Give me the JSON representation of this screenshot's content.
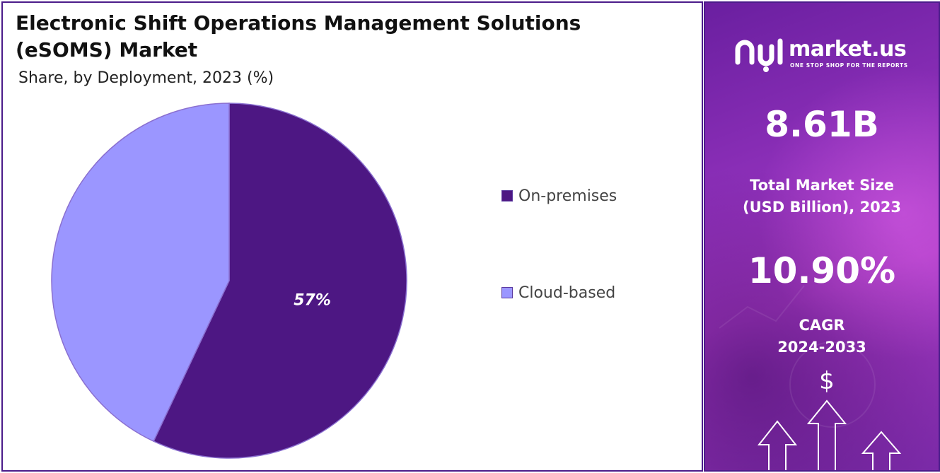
{
  "chart_data": {
    "type": "pie",
    "title": "Electronic Shift Operations Management Solutions (eSOMS) Market",
    "subtitle": "Share, by Deployment, 2023 (%)",
    "categories": [
      "On-premises",
      "Cloud-based"
    ],
    "values": [
      57,
      43
    ],
    "data_labels": [
      "57%",
      ""
    ],
    "colors": [
      "#4d1783",
      "#9b96ff"
    ],
    "legend_position": "right"
  },
  "brand": {
    "name": "market.us",
    "tagline": "ONE STOP SHOP FOR THE REPORTS"
  },
  "stats": {
    "market_size_value": "8.61B",
    "market_size_caption_1": "Total Market Size",
    "market_size_caption_2": "(USD Billion), 2023",
    "cagr_value": "10.90%",
    "cagr_caption_1": "CAGR",
    "cagr_caption_2": "2024-2033"
  },
  "icons": {
    "currency": "$"
  },
  "colors": {
    "accent": "#4b1c8a",
    "panel_purple": "#8c2fb8"
  }
}
